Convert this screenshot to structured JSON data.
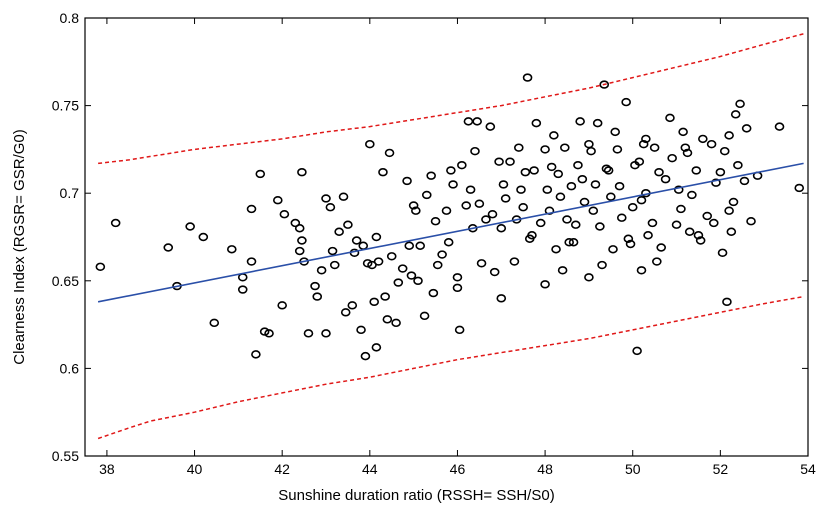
{
  "chart_data": {
    "type": "scatter",
    "title": "",
    "xlabel": "Sunshine duration ratio (RSSH= SSH/S0)",
    "ylabel": "Clearness Index (RGSR= GSR/G0)",
    "xlim": [
      37.5,
      54
    ],
    "ylim": [
      0.55,
      0.8
    ],
    "xticks": [
      38,
      40,
      42,
      44,
      46,
      48,
      50,
      52,
      54
    ],
    "yticks": [
      0.55,
      0.6,
      0.65,
      0.7,
      0.75,
      0.8
    ],
    "xtick_labels": [
      "38",
      "40",
      "42",
      "44",
      "46",
      "48",
      "50",
      "52",
      "54"
    ],
    "ytick_labels": [
      "0.55",
      "0.6",
      "0.65",
      "0.7",
      "0.75",
      "0.8"
    ],
    "grid": false,
    "legend": "none",
    "colors": {
      "points": "#000000",
      "fit": "#2a4fa8",
      "bounds": "#e01818"
    },
    "fit_line": {
      "x": [
        37.8,
        53.9
      ],
      "y": [
        0.638,
        0.717
      ]
    },
    "upper_bound": {
      "x": [
        37.8,
        38.5,
        39,
        40,
        41,
        42,
        43,
        44,
        45,
        46,
        47,
        48,
        49,
        50,
        51,
        52,
        53,
        53.9
      ],
      "y": [
        0.717,
        0.719,
        0.721,
        0.725,
        0.728,
        0.731,
        0.735,
        0.738,
        0.742,
        0.746,
        0.75,
        0.755,
        0.76,
        0.766,
        0.772,
        0.778,
        0.785,
        0.791
      ]
    },
    "lower_bound": {
      "x": [
        37.8,
        38.5,
        39,
        40,
        41,
        42,
        43,
        44,
        45,
        46,
        47,
        48,
        49,
        50,
        51,
        52,
        53,
        53.9
      ],
      "y": [
        0.56,
        0.566,
        0.57,
        0.575,
        0.581,
        0.586,
        0.591,
        0.595,
        0.6,
        0.605,
        0.609,
        0.613,
        0.617,
        0.622,
        0.627,
        0.632,
        0.637,
        0.641
      ]
    },
    "points": [
      [
        37.85,
        0.658
      ],
      [
        38.2,
        0.683
      ],
      [
        39.4,
        0.669
      ],
      [
        39.6,
        0.647
      ],
      [
        39.9,
        0.681
      ],
      [
        40.2,
        0.675
      ],
      [
        40.45,
        0.626
      ],
      [
        40.85,
        0.668
      ],
      [
        41.1,
        0.652
      ],
      [
        41.1,
        0.645
      ],
      [
        41.3,
        0.661
      ],
      [
        41.3,
        0.691
      ],
      [
        41.4,
        0.608
      ],
      [
        41.5,
        0.711
      ],
      [
        41.6,
        0.621
      ],
      [
        41.7,
        0.62
      ],
      [
        41.9,
        0.696
      ],
      [
        42.0,
        0.636
      ],
      [
        42.05,
        0.688
      ],
      [
        42.4,
        0.667
      ],
      [
        42.3,
        0.683
      ],
      [
        42.4,
        0.68
      ],
      [
        42.45,
        0.673
      ],
      [
        42.45,
        0.712
      ],
      [
        42.5,
        0.661
      ],
      [
        42.6,
        0.62
      ],
      [
        42.75,
        0.647
      ],
      [
        42.8,
        0.641
      ],
      [
        42.9,
        0.656
      ],
      [
        43.0,
        0.62
      ],
      [
        43.0,
        0.697
      ],
      [
        43.1,
        0.692
      ],
      [
        43.15,
        0.667
      ],
      [
        43.3,
        0.678
      ],
      [
        43.4,
        0.698
      ],
      [
        43.45,
        0.632
      ],
      [
        43.5,
        0.682
      ],
      [
        43.6,
        0.636
      ],
      [
        43.65,
        0.666
      ],
      [
        43.7,
        0.673
      ],
      [
        43.8,
        0.622
      ],
      [
        43.85,
        0.67
      ],
      [
        43.9,
        0.607
      ],
      [
        43.95,
        0.66
      ],
      [
        44.0,
        0.728
      ],
      [
        44.05,
        0.659
      ],
      [
        44.1,
        0.638
      ],
      [
        44.15,
        0.612
      ],
      [
        44.15,
        0.675
      ],
      [
        44.3,
        0.712
      ],
      [
        44.35,
        0.641
      ],
      [
        44.4,
        0.628
      ],
      [
        44.45,
        0.723
      ],
      [
        44.5,
        0.664
      ],
      [
        44.6,
        0.626
      ],
      [
        44.65,
        0.649
      ],
      [
        44.75,
        0.657
      ],
      [
        44.85,
        0.707
      ],
      [
        44.95,
        0.653
      ],
      [
        45.0,
        0.693
      ],
      [
        45.05,
        0.69
      ],
      [
        45.15,
        0.67
      ],
      [
        45.25,
        0.63
      ],
      [
        45.3,
        0.699
      ],
      [
        45.45,
        0.643
      ],
      [
        45.5,
        0.684
      ],
      [
        45.55,
        0.659
      ],
      [
        45.65,
        0.665
      ],
      [
        45.75,
        0.69
      ],
      [
        45.85,
        0.713
      ],
      [
        45.9,
        0.705
      ],
      [
        46.0,
        0.652
      ],
      [
        46.05,
        0.622
      ],
      [
        46.1,
        0.716
      ],
      [
        46.2,
        0.693
      ],
      [
        46.25,
        0.741
      ],
      [
        46.3,
        0.702
      ],
      [
        46.35,
        0.68
      ],
      [
        46.45,
        0.741
      ],
      [
        46.5,
        0.694
      ],
      [
        46.55,
        0.66
      ],
      [
        46.65,
        0.685
      ],
      [
        46.75,
        0.738
      ],
      [
        46.85,
        0.655
      ],
      [
        46.95,
        0.718
      ],
      [
        47.0,
        0.68
      ],
      [
        47.05,
        0.705
      ],
      [
        47.1,
        0.697
      ],
      [
        47.2,
        0.718
      ],
      [
        47.3,
        0.661
      ],
      [
        47.35,
        0.685
      ],
      [
        47.45,
        0.702
      ],
      [
        47.5,
        0.692
      ],
      [
        47.55,
        0.712
      ],
      [
        47.6,
        0.766
      ],
      [
        47.65,
        0.674
      ],
      [
        47.75,
        0.713
      ],
      [
        47.8,
        0.74
      ],
      [
        47.9,
        0.683
      ],
      [
        48.0,
        0.725
      ],
      [
        48.05,
        0.702
      ],
      [
        48.1,
        0.69
      ],
      [
        48.15,
        0.715
      ],
      [
        48.25,
        0.668
      ],
      [
        48.3,
        0.711
      ],
      [
        48.35,
        0.698
      ],
      [
        48.4,
        0.656
      ],
      [
        48.45,
        0.726
      ],
      [
        48.5,
        0.685
      ],
      [
        48.6,
        0.704
      ],
      [
        48.65,
        0.672
      ],
      [
        48.7,
        0.682
      ],
      [
        48.75,
        0.716
      ],
      [
        48.8,
        0.741
      ],
      [
        48.85,
        0.708
      ],
      [
        48.9,
        0.695
      ],
      [
        49.0,
        0.728
      ],
      [
        49.05,
        0.724
      ],
      [
        49.1,
        0.69
      ],
      [
        49.15,
        0.705
      ],
      [
        49.25,
        0.681
      ],
      [
        49.3,
        0.659
      ],
      [
        49.35,
        0.762
      ],
      [
        49.4,
        0.714
      ],
      [
        49.45,
        0.713
      ],
      [
        49.5,
        0.698
      ],
      [
        49.6,
        0.735
      ],
      [
        49.65,
        0.725
      ],
      [
        49.7,
        0.704
      ],
      [
        49.75,
        0.686
      ],
      [
        49.85,
        0.752
      ],
      [
        49.9,
        0.674
      ],
      [
        49.95,
        0.671
      ],
      [
        50.0,
        0.692
      ],
      [
        50.05,
        0.716
      ],
      [
        50.1,
        0.61
      ],
      [
        50.15,
        0.718
      ],
      [
        50.2,
        0.696
      ],
      [
        50.25,
        0.728
      ],
      [
        50.3,
        0.7
      ],
      [
        50.35,
        0.676
      ],
      [
        50.45,
        0.683
      ],
      [
        50.5,
        0.726
      ],
      [
        50.6,
        0.712
      ],
      [
        50.65,
        0.669
      ],
      [
        50.75,
        0.708
      ],
      [
        50.85,
        0.743
      ],
      [
        50.9,
        0.72
      ],
      [
        51.0,
        0.682
      ],
      [
        51.05,
        0.702
      ],
      [
        51.1,
        0.691
      ],
      [
        51.15,
        0.735
      ],
      [
        51.25,
        0.723
      ],
      [
        51.3,
        0.678
      ],
      [
        51.35,
        0.699
      ],
      [
        51.45,
        0.713
      ],
      [
        51.55,
        0.673
      ],
      [
        51.6,
        0.731
      ],
      [
        51.7,
        0.687
      ],
      [
        51.8,
        0.728
      ],
      [
        51.85,
        0.683
      ],
      [
        51.9,
        0.706
      ],
      [
        52.0,
        0.712
      ],
      [
        52.05,
        0.666
      ],
      [
        52.1,
        0.724
      ],
      [
        52.15,
        0.638
      ],
      [
        52.2,
        0.69
      ],
      [
        52.25,
        0.678
      ],
      [
        52.3,
        0.695
      ],
      [
        52.35,
        0.745
      ],
      [
        52.4,
        0.716
      ],
      [
        52.45,
        0.751
      ],
      [
        52.55,
        0.707
      ],
      [
        52.6,
        0.737
      ],
      [
        52.7,
        0.684
      ],
      [
        52.85,
        0.71
      ],
      [
        53.35,
        0.738
      ],
      [
        53.8,
        0.703
      ],
      [
        44.9,
        0.67
      ],
      [
        45.8,
        0.672
      ],
      [
        46.8,
        0.688
      ],
      [
        47.7,
        0.676
      ],
      [
        48.55,
        0.672
      ],
      [
        49.55,
        0.668
      ],
      [
        50.55,
        0.661
      ],
      [
        51.5,
        0.676
      ],
      [
        45.4,
        0.71
      ],
      [
        46.4,
        0.724
      ],
      [
        47.4,
        0.726
      ],
      [
        48.2,
        0.733
      ],
      [
        49.2,
        0.74
      ],
      [
        50.3,
        0.731
      ],
      [
        51.2,
        0.726
      ],
      [
        52.2,
        0.733
      ],
      [
        43.2,
        0.659
      ],
      [
        44.2,
        0.661
      ],
      [
        45.1,
        0.65
      ],
      [
        46.0,
        0.646
      ],
      [
        47.0,
        0.64
      ],
      [
        48.0,
        0.648
      ],
      [
        49.0,
        0.652
      ],
      [
        50.2,
        0.656
      ]
    ]
  }
}
